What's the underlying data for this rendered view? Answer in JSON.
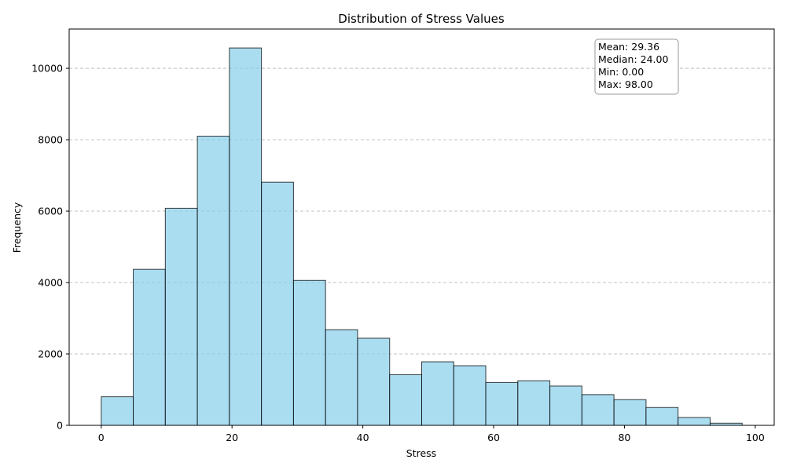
{
  "chart_data": {
    "type": "bar",
    "title": "Distribution of Stress Values",
    "xlabel": "Stress",
    "ylabel": "Frequency",
    "xlim": [
      -4.9,
      102.9
    ],
    "ylim": [
      0,
      11100
    ],
    "x_ticks": [
      0,
      20,
      40,
      60,
      80,
      100
    ],
    "y_ticks": [
      0,
      2000,
      4000,
      6000,
      8000,
      10000
    ],
    "grid": "y-dashed",
    "bins": [
      {
        "x0": 0.0,
        "x1": 4.9,
        "value": 800
      },
      {
        "x0": 4.9,
        "x1": 9.8,
        "value": 4370
      },
      {
        "x0": 9.8,
        "x1": 14.7,
        "value": 6080
      },
      {
        "x0": 14.7,
        "x1": 19.6,
        "value": 8100
      },
      {
        "x0": 19.6,
        "x1": 24.5,
        "value": 10570
      },
      {
        "x0": 24.5,
        "x1": 29.4,
        "value": 6810
      },
      {
        "x0": 29.4,
        "x1": 34.3,
        "value": 4060
      },
      {
        "x0": 34.3,
        "x1": 39.2,
        "value": 2680
      },
      {
        "x0": 39.2,
        "x1": 44.1,
        "value": 2440
      },
      {
        "x0": 44.1,
        "x1": 49.0,
        "value": 1420
      },
      {
        "x0": 49.0,
        "x1": 53.9,
        "value": 1780
      },
      {
        "x0": 53.9,
        "x1": 58.8,
        "value": 1670
      },
      {
        "x0": 58.8,
        "x1": 63.7,
        "value": 1200
      },
      {
        "x0": 63.7,
        "x1": 68.6,
        "value": 1250
      },
      {
        "x0": 68.6,
        "x1": 73.5,
        "value": 1100
      },
      {
        "x0": 73.5,
        "x1": 78.4,
        "value": 860
      },
      {
        "x0": 78.4,
        "x1": 83.3,
        "value": 720
      },
      {
        "x0": 83.3,
        "x1": 88.2,
        "value": 500
      },
      {
        "x0": 88.2,
        "x1": 93.1,
        "value": 220
      },
      {
        "x0": 93.1,
        "x1": 98.0,
        "value": 60
      }
    ],
    "bar_color": "#87ceeb",
    "annotations": [
      "Mean: 29.36",
      "Median: 24.00",
      "Min: 0.00",
      "Max: 98.00"
    ]
  }
}
